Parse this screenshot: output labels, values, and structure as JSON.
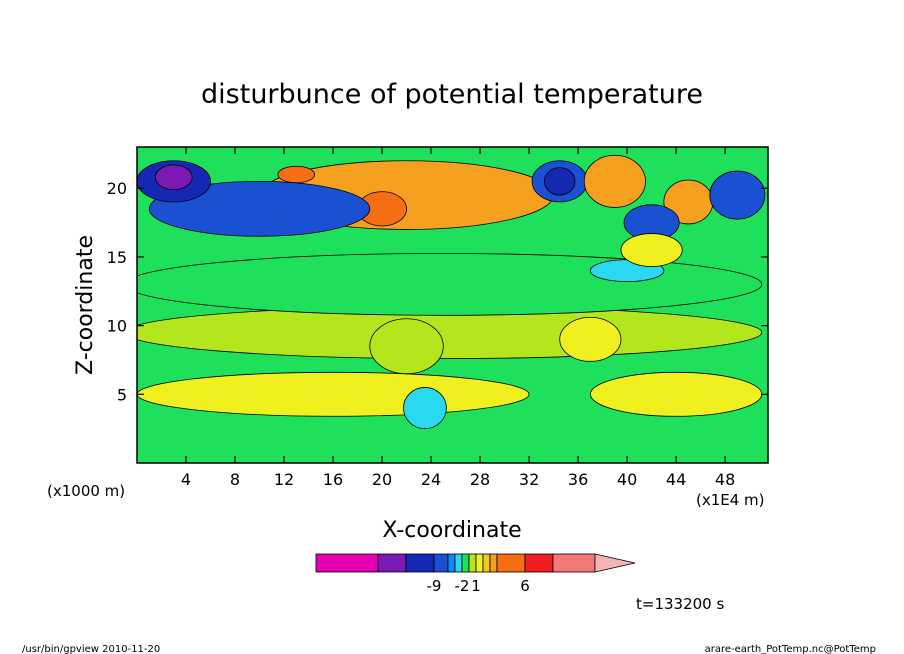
{
  "chart_data": {
    "type": "heatmap",
    "title": "disturbunce of potential temperature",
    "xlabel": "X-coordinate",
    "ylabel": "Z-coordinate",
    "x_unit_left": "(x1000 m)",
    "x_unit_right": "(x1E4 m)",
    "xlim": [
      0,
      51.5
    ],
    "ylim": [
      0,
      23
    ],
    "x_ticks": [
      "4",
      "8",
      "12",
      "16",
      "20",
      "24",
      "28",
      "32",
      "36",
      "40",
      "44",
      "48"
    ],
    "y_ticks": [
      "5",
      "10",
      "15",
      "20"
    ],
    "colorbar": {
      "labels": [
        "-9",
        "-2",
        "1",
        "6"
      ],
      "colors": [
        "#e600b4",
        "#7a19b4",
        "#1528b4",
        "#1a50d2",
        "#0a8cf0",
        "#2ad8f0",
        "#1ee05a",
        "#b4e61e",
        "#f0f01e",
        "#f5c81e",
        "#f5a01e",
        "#f56e14",
        "#f01e1e",
        "#f57878",
        "#f5b4b4"
      ]
    },
    "regions": [
      {
        "level": 2,
        "x": 16,
        "z": 5,
        "w": 32,
        "h": 3.2
      },
      {
        "level": 2,
        "x": 44,
        "z": 5,
        "w": 14,
        "h": 3.2
      },
      {
        "level": 1,
        "x": 25,
        "z": 9.5,
        "w": 52,
        "h": 3.8
      },
      {
        "level": 0,
        "x": 25,
        "z": 13,
        "w": 52,
        "h": 4.5
      },
      {
        "level": -1,
        "x": 40,
        "z": 14,
        "w": 6,
        "h": 1.6
      },
      {
        "level": 4,
        "x": 22,
        "z": 19.5,
        "w": 24,
        "h": 5
      },
      {
        "level": 5,
        "x": 20,
        "z": 18.5,
        "w": 4,
        "h": 2.5
      },
      {
        "level": 5,
        "x": 13,
        "z": 21,
        "w": 3,
        "h": 1.2
      },
      {
        "level": -3,
        "x": 10,
        "z": 18.5,
        "w": 18,
        "h": 4
      },
      {
        "level": -4,
        "x": 3,
        "z": 20.5,
        "w": 6,
        "h": 3
      },
      {
        "level": -5,
        "x": 3,
        "z": 20.8,
        "w": 3,
        "h": 1.8
      },
      {
        "level": -3,
        "x": 34.5,
        "z": 20.5,
        "w": 4.5,
        "h": 3
      },
      {
        "level": -4,
        "x": 34.5,
        "z": 20.5,
        "w": 2.5,
        "h": 2
      },
      {
        "level": 4,
        "x": 39,
        "z": 20.5,
        "w": 5,
        "h": 3.8
      },
      {
        "level": 4,
        "x": 45,
        "z": 19,
        "w": 4,
        "h": 3.2
      },
      {
        "level": -3,
        "x": 42,
        "z": 17.5,
        "w": 4.5,
        "h": 2.6
      },
      {
        "level": -3,
        "x": 49,
        "z": 19.5,
        "w": 4.5,
        "h": 3.5
      },
      {
        "level": 2,
        "x": 42,
        "z": 15.5,
        "w": 5,
        "h": 2.4
      },
      {
        "level": 2,
        "x": 37,
        "z": 9,
        "w": 5,
        "h": 3.2
      },
      {
        "level": 1,
        "x": 22,
        "z": 8.5,
        "w": 6,
        "h": 4
      },
      {
        "level": -1,
        "x": 23.5,
        "z": 4,
        "w": 3.5,
        "h": 3
      }
    ]
  },
  "footer": {
    "time_label": "t=133200 s",
    "program": "/usr/bin/gpview   2010-11-20",
    "source": "arare-earth_PotTemp.nc@PotTemp"
  }
}
